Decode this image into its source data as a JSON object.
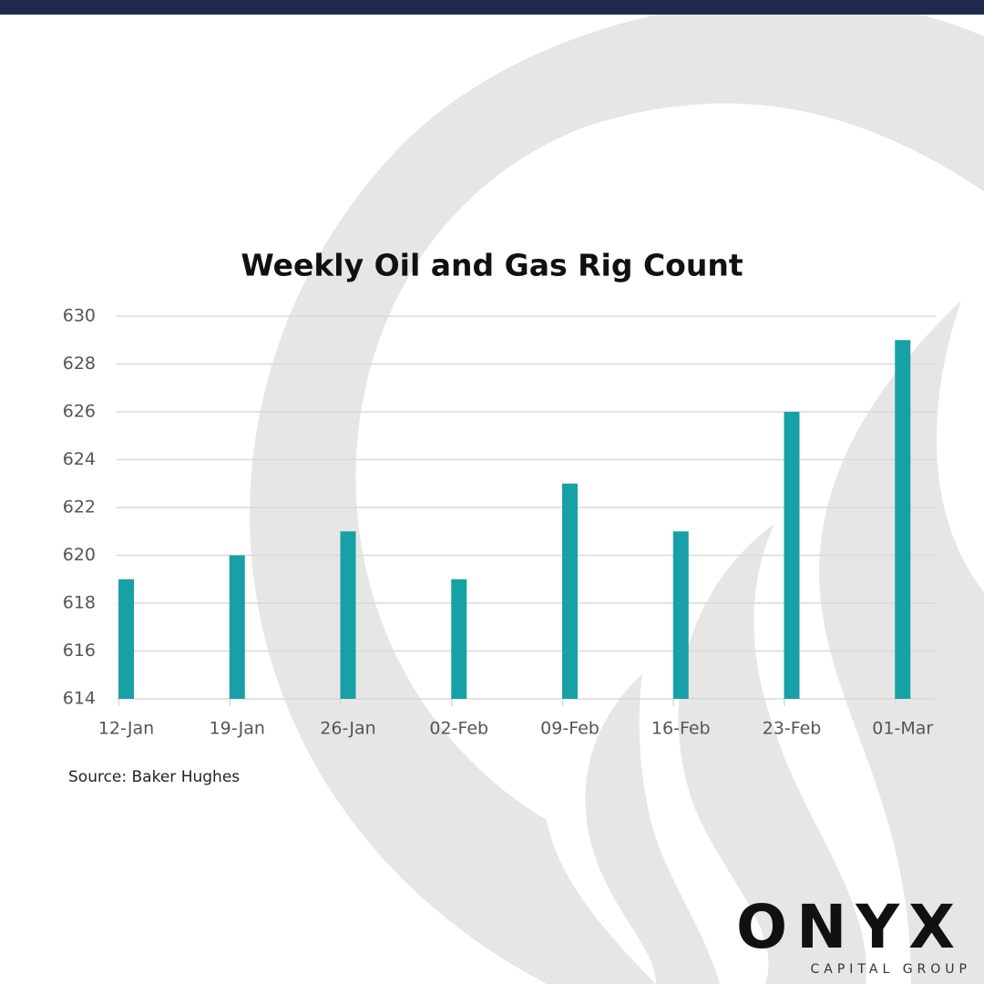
{
  "chart_data": {
    "type": "bar",
    "title": "Weekly Oil and Gas Rig Count",
    "categories": [
      "12-Jan",
      "19-Jan",
      "26-Jan",
      "02-Feb",
      "09-Feb",
      "16-Feb",
      "23-Feb",
      "01-Mar"
    ],
    "values": [
      619,
      620,
      621,
      619,
      623,
      621,
      626,
      629
    ],
    "color": "#17a0a6",
    "ylim": [
      614,
      630
    ],
    "yticks": [
      614,
      616,
      618,
      620,
      622,
      624,
      626,
      628,
      630
    ],
    "grid": true,
    "source": "Source: Baker Hughes"
  },
  "logo": {
    "name": "ONYX",
    "tagline": "CAPITAL GROUP"
  }
}
